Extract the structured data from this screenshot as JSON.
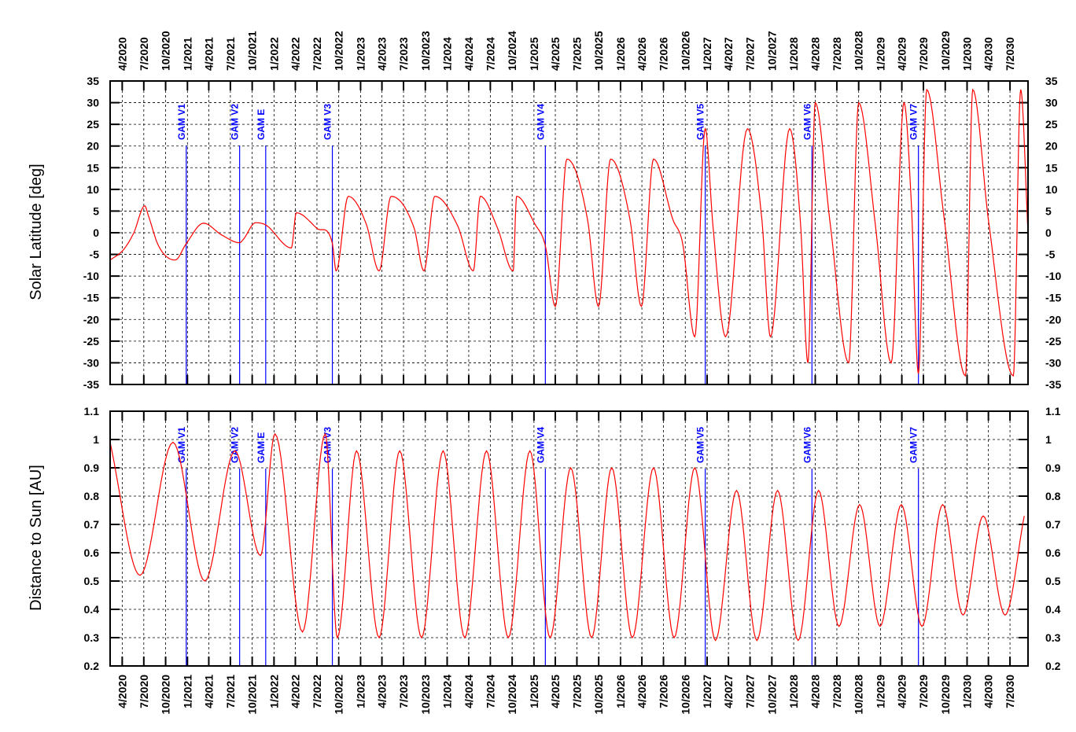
{
  "date_ticks": [
    "4/2020",
    "7/2020",
    "10/2020",
    "1/2021",
    "4/2021",
    "7/2021",
    "10/2021",
    "1/2022",
    "4/2022",
    "7/2022",
    "10/2022",
    "1/2023",
    "4/2023",
    "7/2023",
    "10/2023",
    "1/2024",
    "4/2024",
    "7/2024",
    "10/2024",
    "1/2025",
    "4/2025",
    "7/2025",
    "10/2025",
    "1/2026",
    "4/2026",
    "7/2026",
    "10/2026",
    "1/2027",
    "4/2027",
    "7/2027",
    "10/2027",
    "1/2028",
    "4/2028",
    "7/2028",
    "10/2028",
    "1/2029",
    "4/2029",
    "7/2029",
    "10/2029",
    "1/2030",
    "4/2030",
    "7/2030"
  ],
  "events": [
    {
      "label": "GAM V1",
      "date": "2020-12-27"
    },
    {
      "label": "GAM V2",
      "date": "2021-08-09"
    },
    {
      "label": "GAM E",
      "date": "2021-11-27"
    },
    {
      "label": "GAM V3",
      "date": "2022-09-04"
    },
    {
      "label": "GAM V4",
      "date": "2025-02-18"
    },
    {
      "label": "GAM V5",
      "date": "2026-12-24"
    },
    {
      "label": "GAM V6",
      "date": "2028-03-18"
    },
    {
      "label": "GAM V7",
      "date": "2029-06-10"
    }
  ],
  "colors": {
    "curve": "#ff0000",
    "events": "#0000ff",
    "axes": "#000000",
    "background": "#ffffff"
  },
  "chart_data": [
    {
      "type": "line",
      "ylabel": "Solar Latitude [deg]",
      "xlim": [
        "2020-02-10",
        "2030-09-15"
      ],
      "ylim": [
        -35,
        35
      ],
      "yticks": [
        -35,
        -30,
        -25,
        -20,
        -15,
        -10,
        -5,
        0,
        5,
        10,
        15,
        20,
        25,
        30,
        35
      ],
      "ytick_labels": [
        "-35",
        "-30",
        "-25",
        "-20",
        "-15",
        "-10",
        "-5",
        "0",
        "5",
        "10",
        "15",
        "20",
        "25",
        "30",
        "35"
      ],
      "grid": true,
      "series": [
        {
          "x": [
            "2020-02-10",
            "2020-04-05",
            "2020-05-20",
            "2020-07-05",
            "2020-07-20",
            "2020-09-01",
            "2020-11-10",
            "2020-12-27",
            "2021-03-10",
            "2021-05-25",
            "2021-08-09",
            "2021-08-25",
            "2021-10-15",
            "2021-11-27",
            "2022-03-15",
            "2022-04-05",
            "2022-07-01",
            "2022-09-04",
            "2022-09-20",
            "2022-11-10",
            "2023-01-25",
            "2023-03-20",
            "2023-05-10",
            "2023-08-15",
            "2023-09-25",
            "2023-11-10",
            "2024-02-15",
            "2024-04-20",
            "2024-05-20",
            "2024-08-01",
            "2024-10-05",
            "2024-10-20",
            "2025-01-05",
            "2025-02-18",
            "2025-04-01",
            "2025-05-20",
            "2025-08-15",
            "2025-09-30",
            "2025-11-20",
            "2026-02-10",
            "2026-03-30",
            "2026-05-20",
            "2026-08-10",
            "2026-09-20",
            "2026-11-10",
            "2026-12-24",
            "2027-01-25",
            "2027-03-20",
            "2027-06-20",
            "2027-08-20",
            "2027-09-25",
            "2027-12-15",
            "2028-01-30",
            "2028-03-01",
            "2028-04-01",
            "2028-06-01",
            "2028-08-20",
            "2028-10-01",
            "2028-12-10",
            "2029-02-15",
            "2029-04-10",
            "2029-05-10",
            "2029-06-10",
            "2029-07-15",
            "2029-09-25",
            "2029-12-25",
            "2030-01-25",
            "2030-04-01",
            "2030-07-15",
            "2030-08-15",
            "2030-09-15"
          ],
          "y": [
            -6.3,
            -4,
            0,
            6.2,
            4,
            -3,
            -6.3,
            -2.5,
            2.2,
            -0.5,
            -2.3,
            -1.5,
            2.3,
            1.8,
            -3.5,
            4.6,
            1,
            -2.5,
            -8.8,
            8.4,
            2,
            -8.8,
            8.4,
            1,
            -8.8,
            8.4,
            1.5,
            -8.8,
            8.4,
            1,
            -8.8,
            8.4,
            2,
            -3,
            -17,
            17,
            3,
            -17,
            17,
            3,
            -17,
            17,
            3,
            -2.5,
            -24,
            24,
            2,
            -24,
            24,
            3,
            -24,
            24,
            2,
            -30,
            30,
            3,
            -30,
            30,
            2,
            -30,
            30,
            8,
            -32.5,
            33,
            4,
            -33,
            33,
            3,
            -33,
            33,
            0
          ]
        }
      ]
    },
    {
      "type": "line",
      "ylabel": "Distance to Sun [AU]",
      "xlim": [
        "2020-02-10",
        "2030-09-15"
      ],
      "ylim": [
        0.2,
        1.1
      ],
      "yticks": [
        0.2,
        0.3,
        0.4,
        0.5,
        0.6,
        0.7,
        0.8,
        0.9,
        1.0,
        1.1
      ],
      "ytick_labels": [
        "0.2",
        "0.3",
        "0.4",
        "0.5",
        "0.6",
        "0.7",
        "0.8",
        "0.9",
        "1",
        "1.1"
      ],
      "grid": true,
      "series": [
        {
          "x": [
            "2020-02-10",
            "2020-06-15",
            "2020-11-01",
            "2021-03-15",
            "2021-07-20",
            "2021-11-05",
            "2022-01-05",
            "2022-05-01",
            "2022-08-05",
            "2022-09-25",
            "2022-12-15",
            "2023-03-20",
            "2023-06-15",
            "2023-09-15",
            "2023-12-15",
            "2024-03-15",
            "2024-06-15",
            "2024-09-15",
            "2024-12-15",
            "2025-03-10",
            "2025-06-05",
            "2025-09-01",
            "2025-11-25",
            "2026-02-20",
            "2026-05-20",
            "2026-08-15",
            "2026-11-10",
            "2027-02-05",
            "2027-05-05",
            "2027-07-30",
            "2027-10-25",
            "2028-01-20",
            "2028-04-15",
            "2028-07-10",
            "2028-10-05",
            "2028-12-30",
            "2029-03-30",
            "2029-06-25",
            "2029-09-20",
            "2029-12-15",
            "2030-03-10",
            "2030-06-10",
            "2030-08-30"
          ],
          "y": [
            0.99,
            0.52,
            0.99,
            0.5,
            0.96,
            0.59,
            1.02,
            0.32,
            1.02,
            0.3,
            0.96,
            0.3,
            0.96,
            0.3,
            0.96,
            0.3,
            0.96,
            0.3,
            0.96,
            0.3,
            0.9,
            0.3,
            0.9,
            0.3,
            0.9,
            0.3,
            0.9,
            0.29,
            0.82,
            0.29,
            0.82,
            0.29,
            0.82,
            0.34,
            0.77,
            0.34,
            0.77,
            0.34,
            0.77,
            0.38,
            0.73,
            0.38,
            0.73
          ]
        }
      ]
    }
  ]
}
